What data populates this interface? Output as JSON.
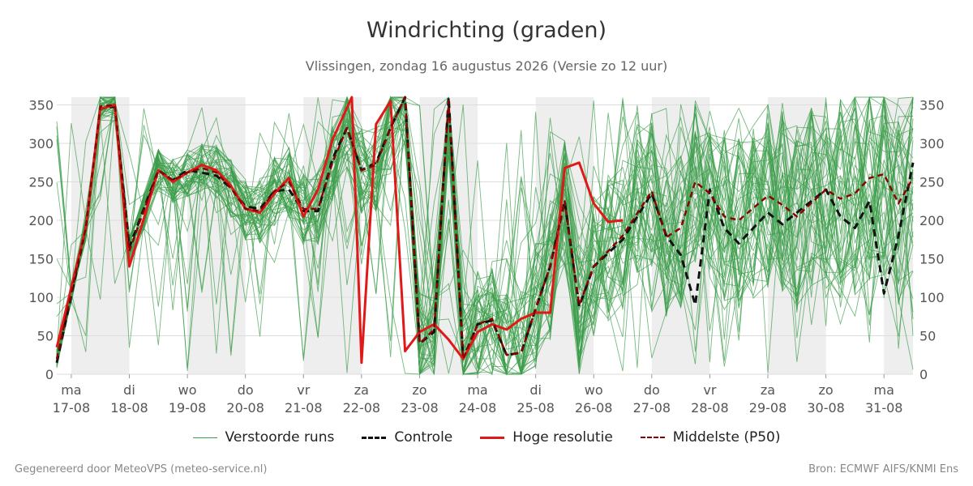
{
  "header": {
    "title": "Windrichting (graden)",
    "subtitle": "Vlissingen, zondag 16 augustus 2026 (Versie zo 12 uur)"
  },
  "footer": {
    "left": "Gegenereerd door MeteoVPS (meteo-service.nl)",
    "right": "Bron: ECMWF AIFS/KNMI Ens"
  },
  "colors": {
    "ensemble": "#3a9d48",
    "control": "#111111",
    "hires": "#e01818",
    "median": "#8b0000",
    "grid": "#dddddd",
    "shade": "#eeeeee"
  },
  "legend": {
    "ensemble": "Verstoorde runs",
    "control": "Controle",
    "hires": "Hoge resolutie",
    "median": "Middelste (P50)"
  },
  "chart_data": {
    "type": "line",
    "title": "Windrichting (graden)",
    "subtitle": "Vlissingen, zondag 16 augustus 2026 (Versie zo 12 uur)",
    "x_start": "2026-08-16 18:00",
    "x_end": "2026-08-31 12:00",
    "ylim": [
      0,
      360
    ],
    "yticks": [
      0,
      50,
      100,
      150,
      200,
      250,
      300,
      350
    ],
    "grid": true,
    "legend_position": "bottom",
    "x_ticks": [
      {
        "day": "ma",
        "date": "17-08",
        "t": "2026-08-17 00:00"
      },
      {
        "day": "di",
        "date": "18-08",
        "t": "2026-08-18 00:00"
      },
      {
        "day": "wo",
        "date": "19-08",
        "t": "2026-08-19 00:00"
      },
      {
        "day": "do",
        "date": "20-08",
        "t": "2026-08-20 00:00"
      },
      {
        "day": "vr",
        "date": "21-08",
        "t": "2026-08-21 00:00"
      },
      {
        "day": "za",
        "date": "22-08",
        "t": "2026-08-22 00:00"
      },
      {
        "day": "zo",
        "date": "23-08",
        "t": "2026-08-23 00:00"
      },
      {
        "day": "ma",
        "date": "24-08",
        "t": "2026-08-24 00:00"
      },
      {
        "day": "di",
        "date": "25-08",
        "t": "2026-08-25 00:00"
      },
      {
        "day": "wo",
        "date": "26-08",
        "t": "2026-08-26 00:00"
      },
      {
        "day": "do",
        "date": "27-08",
        "t": "2026-08-27 00:00"
      },
      {
        "day": "vr",
        "date": "28-08",
        "t": "2026-08-28 00:00"
      },
      {
        "day": "za",
        "date": "29-08",
        "t": "2026-08-29 00:00"
      },
      {
        "day": "zo",
        "date": "30-08",
        "t": "2026-08-30 00:00"
      },
      {
        "day": "ma",
        "date": "31-08",
        "t": "2026-08-31 00:00"
      }
    ],
    "shaded_periods": [
      [
        "2026-08-17 00:00",
        "2026-08-18 00:00"
      ],
      [
        "2026-08-19 00:00",
        "2026-08-20 00:00"
      ],
      [
        "2026-08-21 00:00",
        "2026-08-22 00:00"
      ],
      [
        "2026-08-23 00:00",
        "2026-08-24 00:00"
      ],
      [
        "2026-08-25 00:00",
        "2026-08-26 00:00"
      ],
      [
        "2026-08-27 00:00",
        "2026-08-28 00:00"
      ],
      [
        "2026-08-29 00:00",
        "2026-08-30 00:00"
      ],
      [
        "2026-08-31 00:00",
        "2026-08-31 12:00"
      ]
    ],
    "series": [
      {
        "name": "Hoge resolutie",
        "points": [
          [
            "2026-08-16 18:00",
            35
          ],
          [
            "2026-08-17 06:00",
            190
          ],
          [
            "2026-08-17 12:00",
            345
          ],
          [
            "2026-08-17 18:00",
            350
          ],
          [
            "2026-08-18 00:00",
            140
          ],
          [
            "2026-08-18 12:00",
            265
          ],
          [
            "2026-08-18 18:00",
            250
          ],
          [
            "2026-08-19 00:00",
            262
          ],
          [
            "2026-08-19 06:00",
            272
          ],
          [
            "2026-08-19 12:00",
            265
          ],
          [
            "2026-08-19 18:00",
            245
          ],
          [
            "2026-08-20 00:00",
            215
          ],
          [
            "2026-08-20 06:00",
            210
          ],
          [
            "2026-08-20 12:00",
            235
          ],
          [
            "2026-08-20 18:00",
            255
          ],
          [
            "2026-08-21 00:00",
            205
          ],
          [
            "2026-08-21 06:00",
            240
          ],
          [
            "2026-08-21 12:00",
            305
          ],
          [
            "2026-08-21 20:00",
            360
          ],
          [
            "2026-08-22 00:00",
            15
          ],
          [
            "2026-08-22 06:00",
            325
          ],
          [
            "2026-08-22 12:00",
            355
          ],
          [
            "2026-08-22 18:00",
            30
          ],
          [
            "2026-08-23 00:00",
            55
          ],
          [
            "2026-08-23 06:00",
            65
          ],
          [
            "2026-08-23 12:00",
            45
          ],
          [
            "2026-08-23 18:00",
            20
          ],
          [
            "2026-08-24 00:00",
            55
          ],
          [
            "2026-08-24 06:00",
            65
          ],
          [
            "2026-08-24 12:00",
            58
          ],
          [
            "2026-08-24 18:00",
            72
          ],
          [
            "2026-08-25 00:00",
            80
          ],
          [
            "2026-08-25 06:00",
            80
          ],
          [
            "2026-08-25 12:00",
            268
          ],
          [
            "2026-08-25 18:00",
            275
          ],
          [
            "2026-08-26 00:00",
            222
          ],
          [
            "2026-08-26 06:00",
            198
          ],
          [
            "2026-08-26 12:00",
            200
          ]
        ]
      },
      {
        "name": "Controle",
        "points": [
          [
            "2026-08-16 18:00",
            15
          ],
          [
            "2026-08-17 06:00",
            190
          ],
          [
            "2026-08-17 12:00",
            345
          ],
          [
            "2026-08-17 18:00",
            348
          ],
          [
            "2026-08-18 00:00",
            165
          ],
          [
            "2026-08-18 12:00",
            265
          ],
          [
            "2026-08-18 18:00",
            252
          ],
          [
            "2026-08-19 00:00",
            265
          ],
          [
            "2026-08-19 06:00",
            262
          ],
          [
            "2026-08-19 12:00",
            258
          ],
          [
            "2026-08-19 18:00",
            242
          ],
          [
            "2026-08-20 00:00",
            218
          ],
          [
            "2026-08-20 06:00",
            215
          ],
          [
            "2026-08-20 12:00",
            238
          ],
          [
            "2026-08-20 18:00",
            240
          ],
          [
            "2026-08-21 00:00",
            212
          ],
          [
            "2026-08-21 06:00",
            212
          ],
          [
            "2026-08-21 12:00",
            280
          ],
          [
            "2026-08-21 18:00",
            320
          ],
          [
            "2026-08-22 00:00",
            265
          ],
          [
            "2026-08-22 06:00",
            275
          ],
          [
            "2026-08-22 12:00",
            320
          ],
          [
            "2026-08-22 18:00",
            360
          ],
          [
            "2026-08-23 00:00",
            40
          ],
          [
            "2026-08-23 06:00",
            55
          ],
          [
            "2026-08-23 12:00",
            360
          ],
          [
            "2026-08-23 18:00",
            20
          ],
          [
            "2026-08-24 00:00",
            65
          ],
          [
            "2026-08-24 06:00",
            70
          ],
          [
            "2026-08-24 12:00",
            25
          ],
          [
            "2026-08-24 18:00",
            28
          ],
          [
            "2026-08-25 00:00",
            85
          ],
          [
            "2026-08-25 06:00",
            140
          ],
          [
            "2026-08-25 12:00",
            225
          ],
          [
            "2026-08-25 18:00",
            88
          ],
          [
            "2026-08-26 00:00",
            140
          ],
          [
            "2026-08-26 12:00",
            175
          ],
          [
            "2026-08-27 00:00",
            235
          ],
          [
            "2026-08-27 06:00",
            180
          ],
          [
            "2026-08-27 12:00",
            155
          ],
          [
            "2026-08-27 18:00",
            90
          ],
          [
            "2026-08-28 00:00",
            240
          ],
          [
            "2026-08-28 06:00",
            190
          ],
          [
            "2026-08-28 12:00",
            170
          ],
          [
            "2026-08-29 00:00",
            210
          ],
          [
            "2026-08-29 06:00",
            195
          ],
          [
            "2026-08-29 12:00",
            210
          ],
          [
            "2026-08-30 00:00",
            240
          ],
          [
            "2026-08-30 06:00",
            205
          ],
          [
            "2026-08-30 12:00",
            190
          ],
          [
            "2026-08-30 18:00",
            225
          ],
          [
            "2026-08-31 00:00",
            105
          ],
          [
            "2026-08-31 06:00",
            180
          ],
          [
            "2026-08-31 12:00",
            275
          ]
        ]
      },
      {
        "name": "Middelste (P50)",
        "points": [
          [
            "2026-08-16 18:00",
            20
          ],
          [
            "2026-08-17 06:00",
            190
          ],
          [
            "2026-08-17 12:00",
            348
          ],
          [
            "2026-08-17 18:00",
            350
          ],
          [
            "2026-08-18 00:00",
            160
          ],
          [
            "2026-08-18 12:00",
            265
          ],
          [
            "2026-08-18 18:00",
            252
          ],
          [
            "2026-08-19 00:00",
            262
          ],
          [
            "2026-08-19 06:00",
            268
          ],
          [
            "2026-08-19 12:00",
            262
          ],
          [
            "2026-08-19 18:00",
            242
          ],
          [
            "2026-08-20 00:00",
            215
          ],
          [
            "2026-08-20 06:00",
            212
          ],
          [
            "2026-08-20 12:00",
            238
          ],
          [
            "2026-08-20 18:00",
            250
          ],
          [
            "2026-08-21 00:00",
            215
          ],
          [
            "2026-08-21 06:00",
            215
          ],
          [
            "2026-08-21 12:00",
            275
          ],
          [
            "2026-08-21 18:00",
            320
          ],
          [
            "2026-08-22 00:00",
            265
          ],
          [
            "2026-08-22 06:00",
            272
          ],
          [
            "2026-08-22 12:00",
            320
          ],
          [
            "2026-08-22 18:00",
            360
          ],
          [
            "2026-08-23 00:00",
            40
          ],
          [
            "2026-08-23 06:00",
            58
          ],
          [
            "2026-08-23 12:00",
            355
          ],
          [
            "2026-08-23 18:00",
            20
          ],
          [
            "2026-08-24 00:00",
            65
          ],
          [
            "2026-08-24 06:00",
            72
          ],
          [
            "2026-08-24 12:00",
            25
          ],
          [
            "2026-08-24 18:00",
            28
          ],
          [
            "2026-08-25 00:00",
            85
          ],
          [
            "2026-08-25 06:00",
            140
          ],
          [
            "2026-08-25 12:00",
            225
          ],
          [
            "2026-08-25 18:00",
            90
          ],
          [
            "2026-08-26 00:00",
            140
          ],
          [
            "2026-08-26 12:00",
            180
          ],
          [
            "2026-08-27 00:00",
            238
          ],
          [
            "2026-08-27 06:00",
            178
          ],
          [
            "2026-08-27 12:00",
            190
          ],
          [
            "2026-08-27 18:00",
            250
          ],
          [
            "2026-08-28 00:00",
            235
          ],
          [
            "2026-08-28 06:00",
            205
          ],
          [
            "2026-08-28 12:00",
            200
          ],
          [
            "2026-08-29 00:00",
            232
          ],
          [
            "2026-08-29 06:00",
            220
          ],
          [
            "2026-08-29 12:00",
            205
          ],
          [
            "2026-08-30 00:00",
            240
          ],
          [
            "2026-08-30 06:00",
            228
          ],
          [
            "2026-08-30 12:00",
            235
          ],
          [
            "2026-08-30 18:00",
            255
          ],
          [
            "2026-08-31 00:00",
            260
          ],
          [
            "2026-08-31 06:00",
            222
          ],
          [
            "2026-08-31 12:00",
            255
          ]
        ]
      }
    ]
  }
}
